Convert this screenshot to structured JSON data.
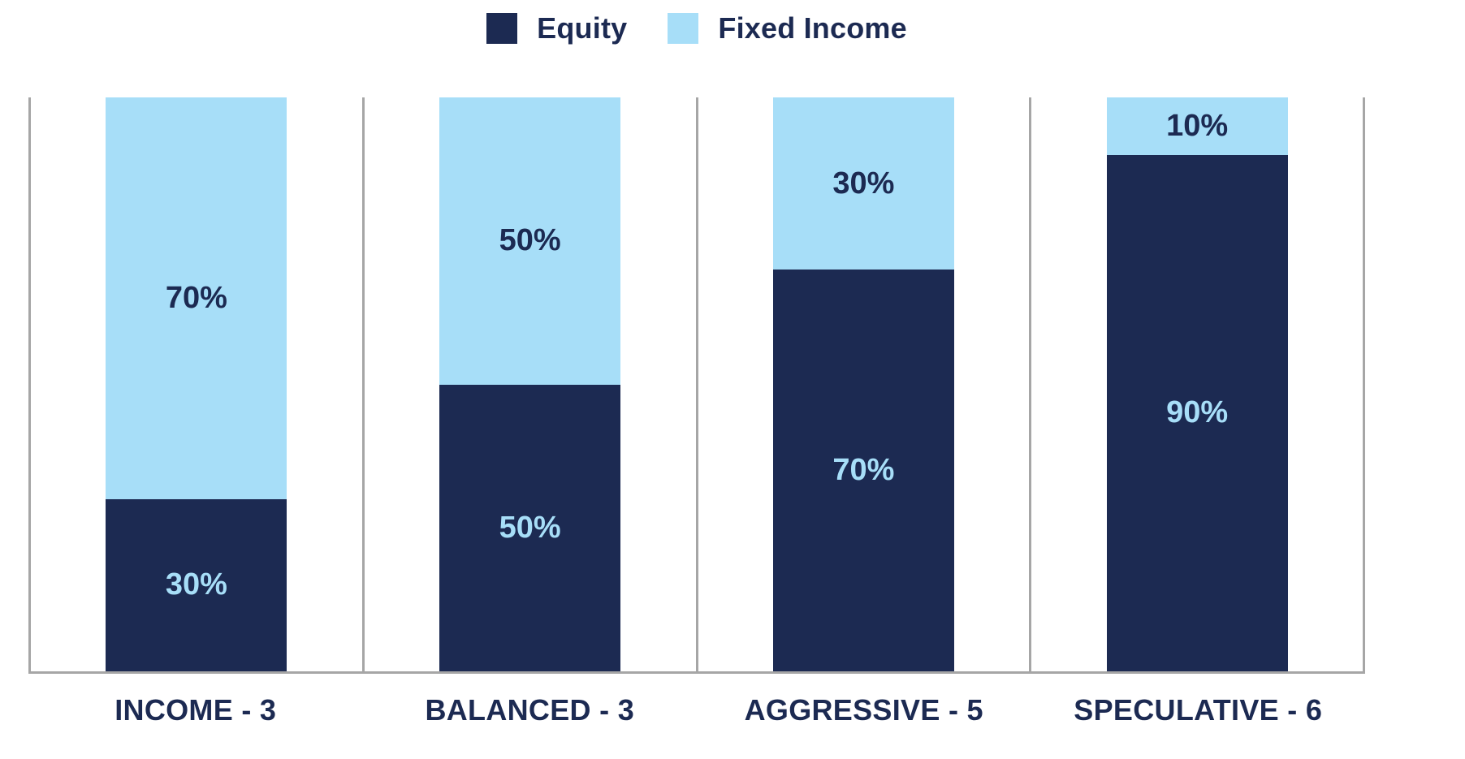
{
  "legend": {
    "items": [
      {
        "label": "Equity"
      },
      {
        "label": "Fixed Income"
      }
    ]
  },
  "chart_data": {
    "type": "bar",
    "stacked": true,
    "orientation": "vertical",
    "title": "",
    "xlabel": "",
    "ylabel": "",
    "categories": [
      "INCOME - 3",
      "BALANCED - 3",
      "AGGRESSIVE - 5",
      "SPECULATIVE - 6"
    ],
    "series": [
      {
        "name": "Equity",
        "color": "#1C2A52",
        "position": "bottom",
        "values": [
          30,
          50,
          70,
          90
        ],
        "labels": [
          "30%",
          "50%",
          "70%",
          "90%"
        ]
      },
      {
        "name": "Fixed Income",
        "color": "#A7DEF8",
        "position": "top",
        "values": [
          70,
          50,
          30,
          10
        ],
        "labels": [
          "70%",
          "50%",
          "30%",
          "10%"
        ]
      }
    ],
    "ylim": [
      0,
      100
    ],
    "grid": false,
    "legend_position": "top",
    "axis_color": "#A6A6A6",
    "label_color": "#1C2A52"
  },
  "colors": {
    "equity": "#1C2A52",
    "fixed_income": "#A7DEF8",
    "axis": "#A6A6A6",
    "background": "#FFFFFF"
  }
}
